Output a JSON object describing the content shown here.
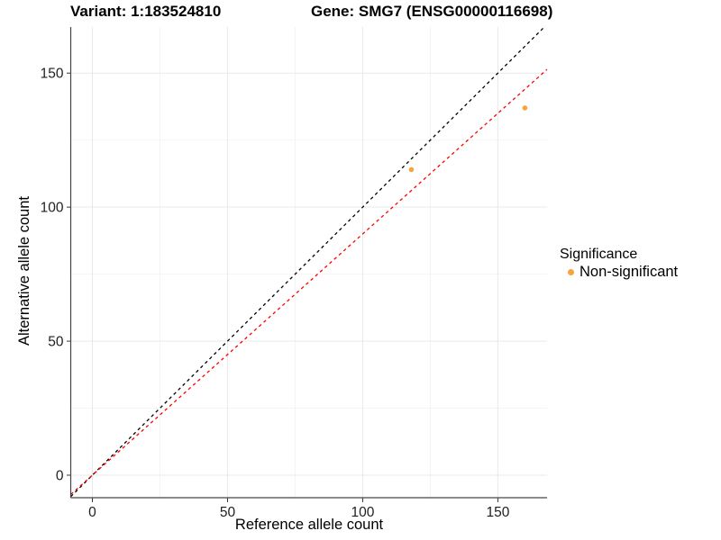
{
  "titles": {
    "variant": "Variant: 1:183524810",
    "gene": "Gene: SMG7 (ENSG00000116698)"
  },
  "axes": {
    "x_label": "Reference allele count",
    "y_label": "Alternative allele count"
  },
  "legend": {
    "title": "Significance",
    "items": [
      {
        "label": "Non-significant",
        "color": "#F9A33C"
      }
    ]
  },
  "chart_data": {
    "type": "scatter",
    "title": "Variant: 1:183524810  Gene: SMG7 (ENSG00000116698)",
    "xlabel": "Reference allele count",
    "ylabel": "Alternative allele count",
    "series": [
      {
        "name": "Non-significant",
        "color": "#F9A33C",
        "points": [
          {
            "x": 118,
            "y": 114
          },
          {
            "x": 160,
            "y": 137
          }
        ]
      }
    ],
    "x_ticks": [
      0,
      50,
      100,
      150
    ],
    "y_ticks": [
      0,
      50,
      100,
      150
    ],
    "x_minor_ticks": [
      25,
      75,
      125
    ],
    "y_minor_ticks": [
      25,
      75,
      125
    ],
    "xlim": [
      -8,
      168.2
    ],
    "ylim": [
      -8.4,
      167.2
    ],
    "lines": [
      {
        "name": "identity-line",
        "slope": 1,
        "intercept": 0,
        "color": "#000000",
        "style": "dashed"
      },
      {
        "name": "fit-line",
        "slope": 0.9,
        "intercept": 0,
        "color": "#FF0000",
        "style": "dashed"
      }
    ],
    "grid": {
      "major_color": "#e9e9e9",
      "minor_color": "#f4f4f4"
    },
    "axis_line_color": "#464646",
    "tick_color": "#333333",
    "tick_label_color": "#1f1f1f",
    "point_radius": 2.8,
    "legend_position": "right"
  }
}
